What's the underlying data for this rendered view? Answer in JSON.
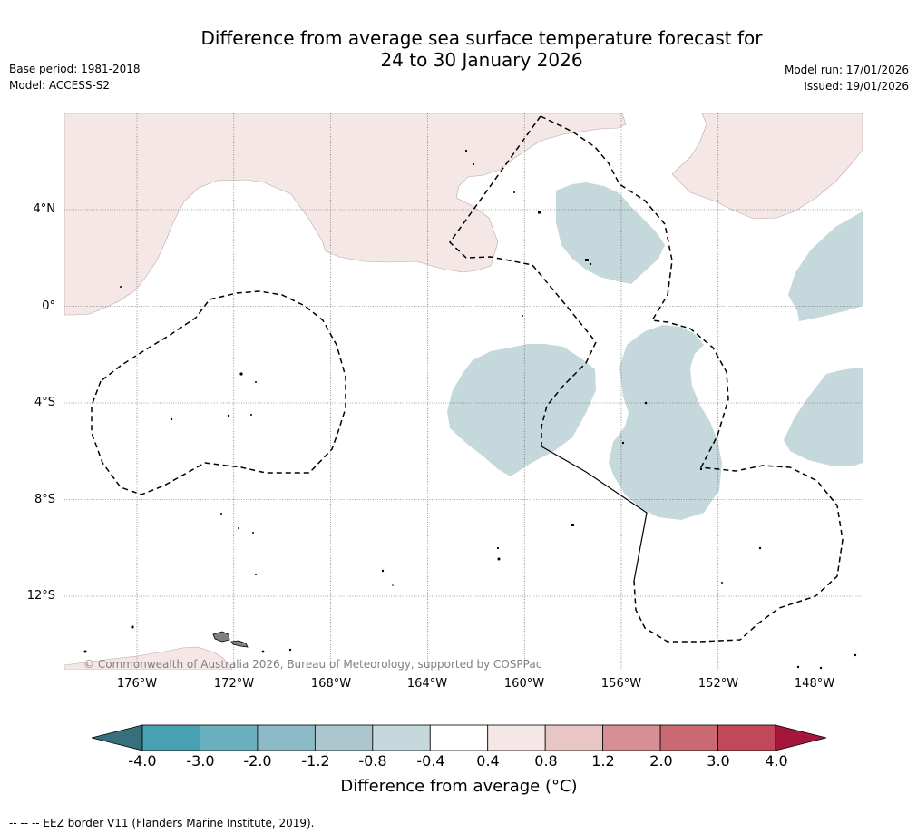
{
  "title": {
    "line1": "Difference from average sea surface temperature forecast for",
    "line2": "24 to 30 January 2026"
  },
  "meta": {
    "base_period": "Base period: 1981-2018",
    "model": "Model: ACCESS-S2",
    "model_run": "Model run: 17/01/2026",
    "issued": "Issued: 19/01/2026"
  },
  "map": {
    "lat_labels": [
      "4°N",
      "0°",
      "4°S",
      "8°S",
      "12°S"
    ],
    "lon_labels": [
      "176°W",
      "172°W",
      "168°W",
      "164°W",
      "160°W",
      "156°W",
      "152°W",
      "148°W"
    ],
    "copyright": "© Commonwealth of Australia 2026, Bureau of Meteorology, supported by COSPPac",
    "colors": {
      "warm_light": "#f4e7e6",
      "cool_light": "#c5d8dc",
      "land": "#808080"
    }
  },
  "colorbar": {
    "ticks": [
      "-4.0",
      "-3.0",
      "-2.0",
      "-1.2",
      "-0.8",
      "-0.4",
      "0.4",
      "0.8",
      "1.2",
      "2.0",
      "3.0",
      "4.0"
    ],
    "colors": [
      "#48a1b3",
      "#6aafbd",
      "#8bb9c5",
      "#abc6cd",
      "#c5d8dc",
      "#ffffff",
      "#f4e7e6",
      "#e8c6c3",
      "#d68f94",
      "#c96a73",
      "#c04858"
    ],
    "under_color": "#35707c",
    "over_color": "#a5173a",
    "label": "Difference from average (°C)"
  },
  "footer": {
    "eez_note": "--  --  -- EEZ border V11 (Flanders Marine Institute, 2019)."
  }
}
